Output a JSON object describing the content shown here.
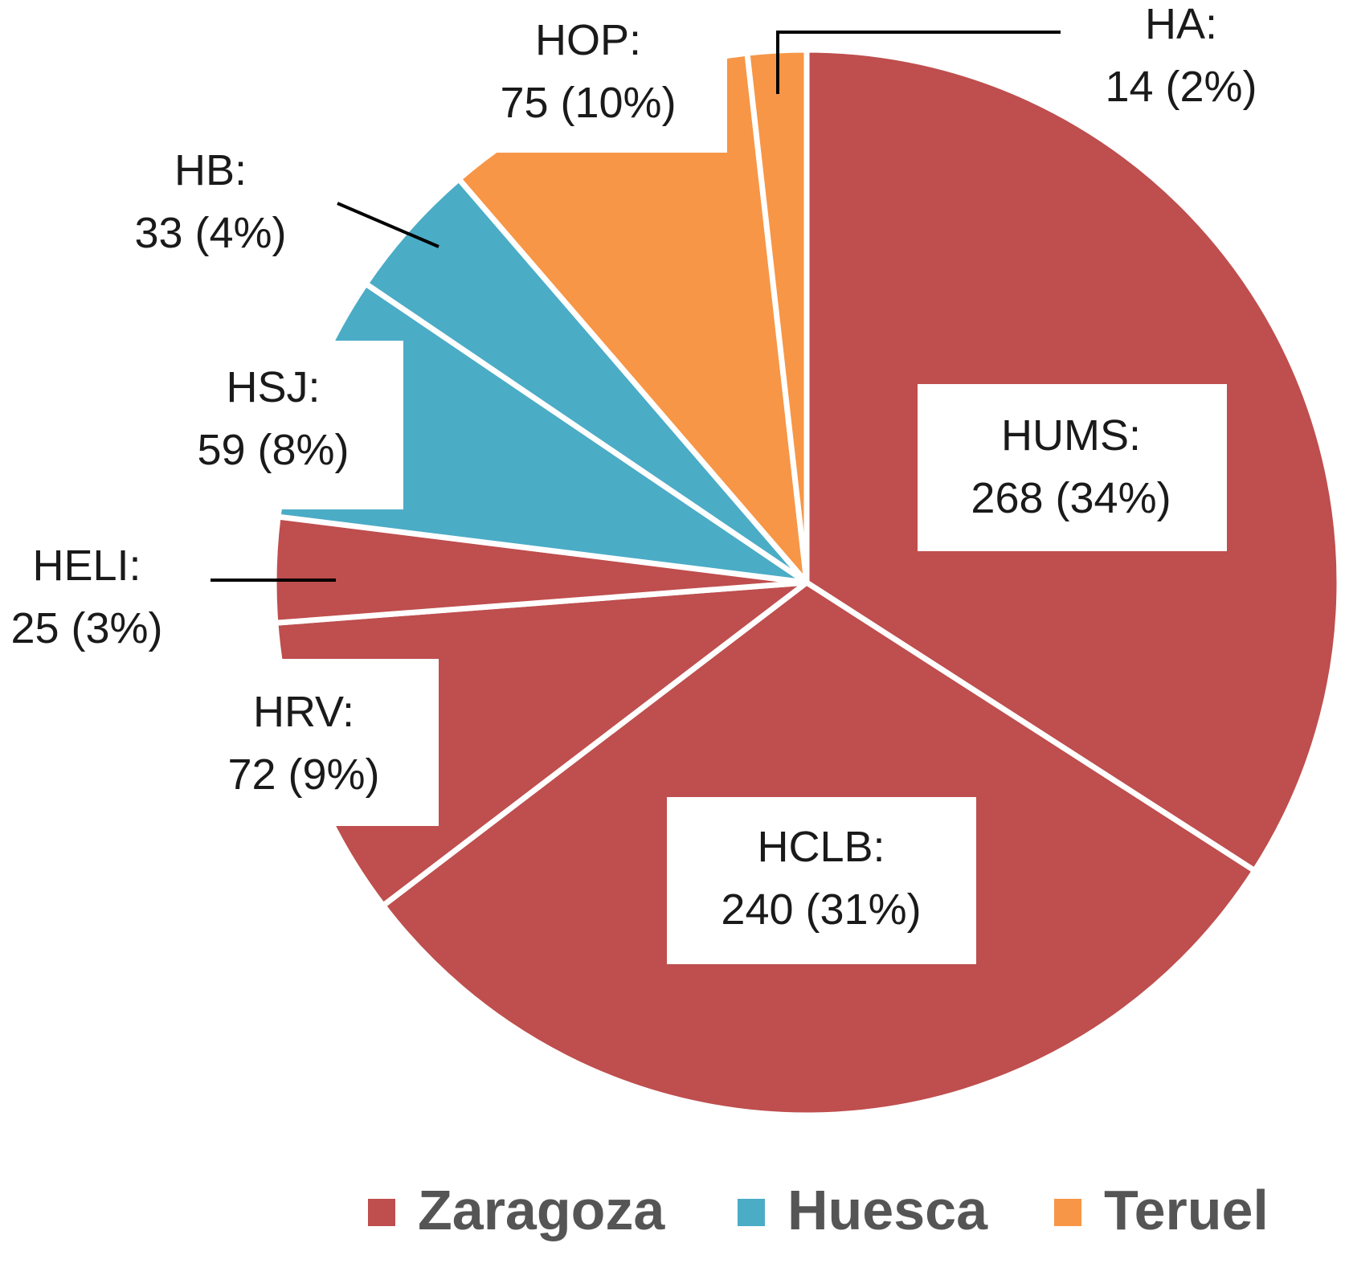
{
  "chart_data": {
    "type": "pie",
    "title": "",
    "groups": [
      {
        "name": "Zaragoza",
        "color": "#BF4E4E"
      },
      {
        "name": "Huesca",
        "color": "#4BACC6"
      },
      {
        "name": "Teruel",
        "color": "#F79646"
      }
    ],
    "slices": [
      {
        "label": "HUMS",
        "value": 268,
        "percent": "34%",
        "group": "Zaragoza",
        "text": "268 (34%)",
        "heading": "HUMS:"
      },
      {
        "label": "HCLB",
        "value": 240,
        "percent": "31%",
        "group": "Zaragoza",
        "text": "240 (31%)",
        "heading": "HCLB:"
      },
      {
        "label": "HRV",
        "value": 72,
        "percent": "9%",
        "group": "Zaragoza",
        "text": "72 (9%)",
        "heading": "HRV:"
      },
      {
        "label": "HELI",
        "value": 25,
        "percent": "3%",
        "group": "Zaragoza",
        "text": "25 (3%)",
        "heading": "HELI:"
      },
      {
        "label": "HSJ",
        "value": 59,
        "percent": "8%",
        "group": "Huesca",
        "text": "59 (8%)",
        "heading": "HSJ:"
      },
      {
        "label": "HB",
        "value": 33,
        "percent": "4%",
        "group": "Huesca",
        "text": "33 (4%)",
        "heading": "HB:"
      },
      {
        "label": "HOP",
        "value": 75,
        "percent": "10%",
        "group": "Teruel",
        "text": "75 (10%)",
        "heading": "HOP:"
      },
      {
        "label": "HA",
        "value": 14,
        "percent": "2%",
        "group": "Teruel",
        "text": "14 (2%)",
        "heading": "HA:"
      }
    ],
    "legend": {
      "position": "bottom-right",
      "entries": [
        "Zaragoza",
        "Huesca",
        "Teruel"
      ]
    }
  }
}
